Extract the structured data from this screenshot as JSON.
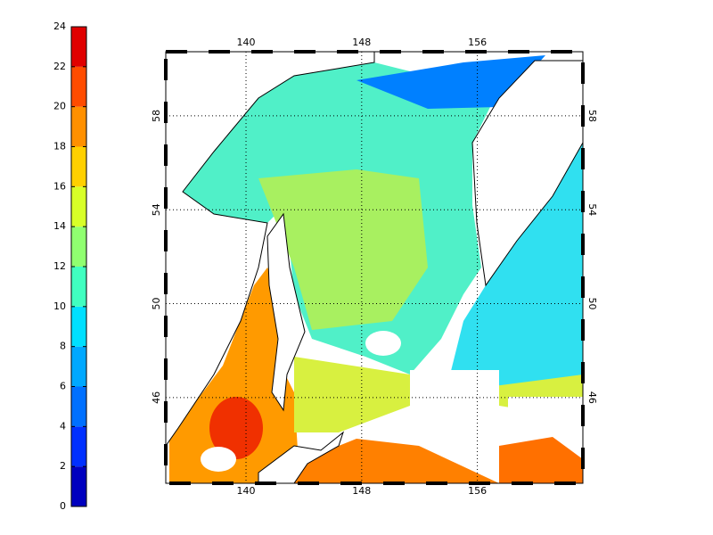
{
  "colorbar": {
    "range": [
      0,
      24
    ],
    "ticks": [
      0,
      2,
      4,
      6,
      8,
      10,
      12,
      14,
      16,
      18,
      20,
      22,
      24
    ],
    "colors": [
      "#0000bf",
      "#0030ff",
      "#0070ff",
      "#00a8ff",
      "#00e0ff",
      "#40ffc0",
      "#90ff70",
      "#d8ff28",
      "#ffd000",
      "#ff9000",
      "#ff4c00",
      "#e00000"
    ]
  },
  "map": {
    "lon_range": [
      134.45,
      163.3
    ],
    "lat_range": [
      42.35,
      60.73
    ],
    "lon_ticks": [
      140,
      148,
      156
    ],
    "lat_ticks": [
      46,
      50,
      54,
      58
    ],
    "grid": true
  }
}
